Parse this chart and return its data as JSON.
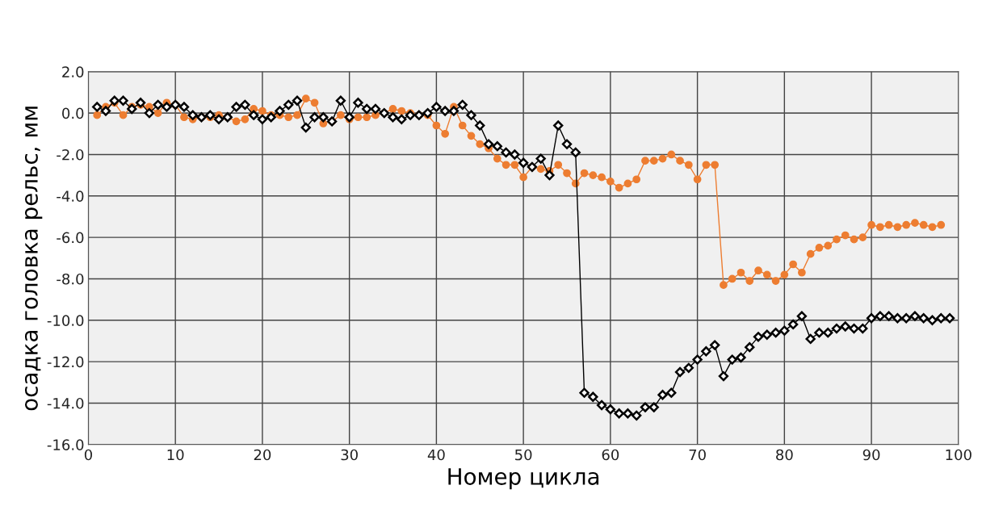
{
  "chart_data": {
    "type": "line",
    "xlabel": "Номер цикла",
    "ylabel": "осадка головка рельс, мм",
    "xlim": [
      0,
      100
    ],
    "xticks": [
      0,
      10,
      20,
      30,
      40,
      50,
      60,
      70,
      80,
      90,
      100
    ],
    "ylim": [
      -16,
      2
    ],
    "yticks": [
      {
        "value": -16,
        "label": "-16.0"
      },
      {
        "value": -14,
        "label": "-14.0"
      },
      {
        "value": -12,
        "label": "-12.0"
      },
      {
        "value": -10,
        "label": "-10.0"
      },
      {
        "value": -8,
        "label": "-8.0"
      },
      {
        "value": -6,
        "label": "-6.0"
      },
      {
        "value": -4,
        "label": "-4.0"
      },
      {
        "value": -2,
        "label": "-2.0"
      },
      {
        "value": 0,
        "label": "0.0"
      },
      {
        "value": 2,
        "label": "2.0"
      }
    ],
    "grid": true,
    "x": [
      1,
      2,
      3,
      4,
      5,
      6,
      7,
      8,
      9,
      10,
      11,
      12,
      13,
      14,
      15,
      16,
      17,
      18,
      19,
      20,
      21,
      22,
      23,
      24,
      25,
      26,
      27,
      28,
      29,
      30,
      31,
      32,
      33,
      34,
      35,
      36,
      37,
      38,
      39,
      40,
      41,
      42,
      43,
      44,
      45,
      46,
      47,
      48,
      49,
      50,
      51,
      52,
      53,
      54,
      55,
      56,
      57,
      58,
      59,
      60,
      61,
      62,
      63,
      64,
      65,
      66,
      67,
      68,
      69,
      70,
      71,
      72,
      73,
      74,
      75,
      76,
      77,
      78,
      79,
      80,
      81,
      82,
      83,
      84,
      85,
      86,
      87,
      88,
      89,
      90,
      91,
      92,
      93,
      94,
      95,
      96,
      97,
      98,
      99
    ],
    "series": [
      {
        "color": "#ed7d31",
        "marker": "circle",
        "x": [
          1,
          2,
          3,
          4,
          5,
          6,
          7,
          8,
          9,
          10,
          11,
          12,
          13,
          14,
          15,
          16,
          17,
          18,
          19,
          20,
          21,
          22,
          23,
          24,
          25,
          26,
          27,
          28,
          29,
          30,
          31,
          32,
          33,
          34,
          35,
          36,
          37,
          38,
          39,
          40,
          41,
          42,
          43,
          44,
          45,
          46,
          47,
          48,
          49,
          50,
          51,
          52,
          53,
          54,
          55,
          56,
          57,
          58,
          59,
          60,
          61,
          62,
          63,
          64,
          65,
          66,
          67,
          68,
          69,
          70,
          71,
          72,
          73,
          74,
          75,
          76,
          77,
          78,
          79,
          80,
          81,
          82,
          83,
          84,
          85,
          86,
          87,
          88,
          89,
          90,
          91,
          92,
          93,
          94,
          95,
          96,
          97,
          98
        ],
        "values": [
          -0.1,
          0.3,
          0.5,
          -0.1,
          0.3,
          0.4,
          0.3,
          0.0,
          0.5,
          0.4,
          -0.2,
          -0.3,
          -0.2,
          -0.2,
          -0.1,
          -0.2,
          -0.4,
          -0.3,
          0.2,
          0.1,
          -0.1,
          -0.1,
          -0.2,
          -0.1,
          0.7,
          0.5,
          -0.5,
          -0.4,
          -0.1,
          -0.3,
          -0.2,
          -0.2,
          -0.1,
          0.0,
          0.2,
          0.1,
          0.0,
          -0.1,
          -0.1,
          -0.6,
          -1.0,
          0.3,
          -0.6,
          -1.1,
          -1.5,
          -1.7,
          -2.2,
          -2.5,
          -2.5,
          -3.1,
          -2.6,
          -2.7,
          -2.8,
          -2.5,
          -2.9,
          -3.4,
          -2.9,
          -3.0,
          -3.1,
          -3.3,
          -3.6,
          -3.4,
          -3.2,
          -2.3,
          -2.3,
          -2.2,
          -2.0,
          -2.3,
          -2.5,
          -3.2,
          -2.5,
          -2.5,
          -8.3,
          -8.0,
          -7.7,
          -8.1,
          -7.6,
          -7.8,
          -8.1,
          -7.8,
          -7.3,
          -7.7,
          -6.8,
          -6.5,
          -6.4,
          -6.1,
          -5.9,
          -6.1,
          -6.0,
          -5.4,
          -5.5,
          -5.4,
          -5.5,
          -5.4,
          -5.3,
          -5.4,
          -5.5,
          -5.4
        ]
      },
      {
        "color": "#000000",
        "marker": "diamond",
        "values": [
          0.3,
          0.1,
          0.6,
          0.6,
          0.2,
          0.5,
          0.0,
          0.4,
          0.3,
          0.4,
          0.3,
          -0.1,
          -0.2,
          -0.1,
          -0.3,
          -0.2,
          0.3,
          0.4,
          -0.1,
          -0.3,
          -0.2,
          0.1,
          0.4,
          0.6,
          -0.7,
          -0.2,
          -0.2,
          -0.4,
          0.6,
          -0.2,
          0.5,
          0.2,
          0.2,
          0.0,
          -0.2,
          -0.3,
          -0.1,
          -0.1,
          0.0,
          0.3,
          0.1,
          0.1,
          0.4,
          -0.1,
          -0.6,
          -1.5,
          -1.6,
          -1.9,
          -2.0,
          -2.4,
          -2.6,
          -2.2,
          -3.0,
          -0.6,
          -1.5,
          -1.9,
          -13.5,
          -13.7,
          -14.1,
          -14.3,
          -14.5,
          -14.5,
          -14.6,
          -14.2,
          -14.2,
          -13.6,
          -13.5,
          -12.5,
          -12.3,
          -11.9,
          -11.5,
          -11.2,
          -12.7,
          -11.9,
          -11.8,
          -11.3,
          -10.8,
          -10.7,
          -10.6,
          -10.5,
          -10.2,
          -9.8,
          -10.9,
          -10.6,
          -10.6,
          -10.4,
          -10.3,
          -10.4,
          -10.4,
          -9.9,
          -9.8,
          -9.8,
          -9.9,
          -9.9,
          -9.8,
          -9.9,
          -10.0,
          -9.9,
          -9.9
        ]
      }
    ]
  }
}
